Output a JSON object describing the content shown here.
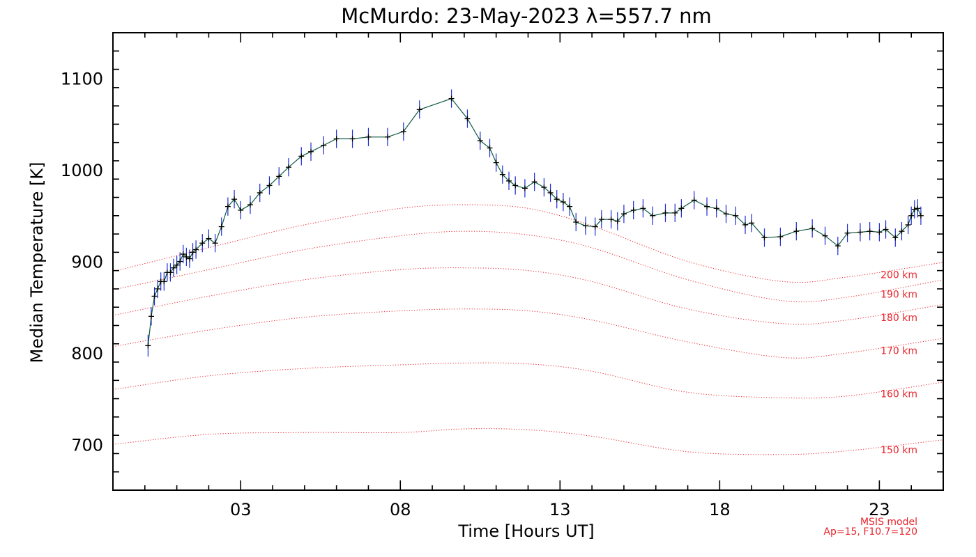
{
  "chart_data": {
    "type": "line",
    "title": "McMurdo: 23-May-2023 λ=557.7 nm",
    "xlabel": "Time [Hours UT]",
    "ylabel": "Median Temperature [K]",
    "xlim": [
      -1,
      25
    ],
    "ylim": [
      650,
      1150
    ],
    "x_ticks": [
      3,
      8,
      13,
      18,
      23
    ],
    "x_tick_labels": [
      "03",
      "08",
      "13",
      "18",
      "23"
    ],
    "y_ticks": [
      700,
      800,
      900,
      1000,
      1100
    ],
    "y_tick_labels": [
      "700",
      "800",
      "900",
      "1000",
      "1100"
    ],
    "grid": false,
    "series": [
      {
        "name": "",
        "color": "#0e5a44",
        "errorbar_color": "#1a2bd6",
        "marker_color": "#000000",
        "x": [
          0.1,
          0.2,
          0.3,
          0.4,
          0.5,
          0.6,
          0.7,
          0.8,
          0.9,
          1.0,
          1.1,
          1.2,
          1.3,
          1.4,
          1.5,
          1.6,
          1.8,
          2.0,
          2.2,
          2.4,
          2.6,
          2.8,
          3.0,
          3.3,
          3.6,
          3.9,
          4.2,
          4.5,
          4.9,
          5.2,
          5.6,
          6.0,
          6.5,
          7.0,
          7.6,
          8.1,
          8.6,
          9.6,
          10.1,
          10.5,
          10.8,
          11.0,
          11.2,
          11.4,
          11.6,
          11.9,
          12.2,
          12.5,
          12.7,
          12.9,
          13.1,
          13.3,
          13.5,
          13.8,
          14.1,
          14.3,
          14.6,
          14.8,
          15.0,
          15.3,
          15.6,
          15.9,
          16.3,
          16.6,
          16.8,
          17.2,
          17.6,
          17.9,
          18.2,
          18.5,
          18.8,
          19.0,
          19.4,
          19.9,
          20.4,
          20.9,
          21.3,
          21.7,
          22.0,
          22.4,
          22.7,
          23.0,
          23.2,
          23.5,
          23.7,
          23.9,
          24.0,
          24.1,
          24.2,
          24.3
        ],
        "y": [
          808,
          840,
          862,
          870,
          878,
          878,
          888,
          888,
          893,
          896,
          900,
          908,
          905,
          903,
          910,
          913,
          920,
          925,
          920,
          938,
          960,
          968,
          956,
          962,
          975,
          983,
          993,
          1003,
          1015,
          1020,
          1027,
          1034,
          1034,
          1036,
          1036,
          1042,
          1066,
          1078,
          1056,
          1032,
          1024,
          1008,
          995,
          988,
          983,
          980,
          987,
          981,
          975,
          968,
          965,
          960,
          943,
          939,
          938,
          946,
          946,
          944,
          952,
          956,
          958,
          950,
          953,
          953,
          958,
          967,
          960,
          958,
          952,
          950,
          940,
          942,
          926,
          927,
          933,
          936,
          928,
          917,
          931,
          932,
          933,
          932,
          935,
          926,
          933,
          940,
          950,
          957,
          958,
          950
        ],
        "err": [
          12,
          10,
          10,
          10,
          10,
          10,
          10,
          10,
          10,
          10,
          10,
          10,
          10,
          10,
          10,
          10,
          10,
          10,
          10,
          10,
          10,
          10,
          10,
          10,
          10,
          10,
          10,
          10,
          10,
          10,
          10,
          10,
          10,
          10,
          10,
          10,
          10,
          10,
          10,
          10,
          10,
          10,
          10,
          10,
          10,
          10,
          10,
          10,
          10,
          10,
          10,
          10,
          10,
          10,
          10,
          10,
          10,
          10,
          10,
          10,
          10,
          10,
          10,
          10,
          10,
          10,
          10,
          10,
          10,
          10,
          10,
          10,
          10,
          10,
          10,
          10,
          10,
          10,
          10,
          10,
          10,
          10,
          10,
          10,
          10,
          10,
          10,
          10,
          10,
          10
        ]
      }
    ],
    "model_curves": [
      {
        "label": "150 km",
        "color": "#e8242b",
        "x": [
          -1,
          2,
          5,
          8,
          10,
          12,
          14,
          17,
          20,
          22,
          25
        ],
        "y": [
          700,
          711,
          713,
          713,
          717,
          716,
          709,
          692,
          689,
          693,
          705
        ]
      },
      {
        "label": "160 km",
        "color": "#e8242b",
        "x": [
          -1,
          2,
          5,
          8,
          10,
          12,
          14,
          17,
          20,
          22,
          25
        ],
        "y": [
          760,
          775,
          783,
          787,
          789,
          788,
          780,
          757,
          751,
          753,
          768
        ]
      },
      {
        "label": "170 km",
        "color": "#e8242b",
        "x": [
          -1,
          2,
          5,
          8,
          10,
          12,
          14,
          17,
          20,
          22,
          25
        ],
        "y": [
          807,
          825,
          839,
          846,
          848,
          846,
          836,
          812,
          795,
          800,
          816
        ]
      },
      {
        "label": "180 km",
        "color": "#e8242b",
        "x": [
          -1,
          2,
          5,
          8,
          10,
          12,
          14,
          17,
          20,
          22,
          25
        ],
        "y": [
          841,
          862,
          880,
          891,
          893,
          890,
          878,
          848,
          832,
          836,
          853
        ]
      },
      {
        "label": "190 km",
        "color": "#e8242b",
        "x": [
          -1,
          2,
          5,
          8,
          10,
          12,
          14,
          17,
          20,
          22,
          25
        ],
        "y": [
          869,
          891,
          913,
          928,
          933,
          929,
          915,
          880,
          857,
          861,
          880
        ]
      },
      {
        "label": "200 km",
        "color": "#e8242b",
        "x": [
          -1,
          2,
          5,
          8,
          10,
          12,
          14,
          17,
          20,
          22,
          25
        ],
        "y": [
          889,
          915,
          940,
          958,
          962,
          958,
          939,
          900,
          878,
          883,
          899
        ]
      }
    ],
    "model_note": {
      "line1": "MSIS model",
      "line2": "Ap=15, F10.7=120",
      "color": "#e8242b"
    }
  }
}
